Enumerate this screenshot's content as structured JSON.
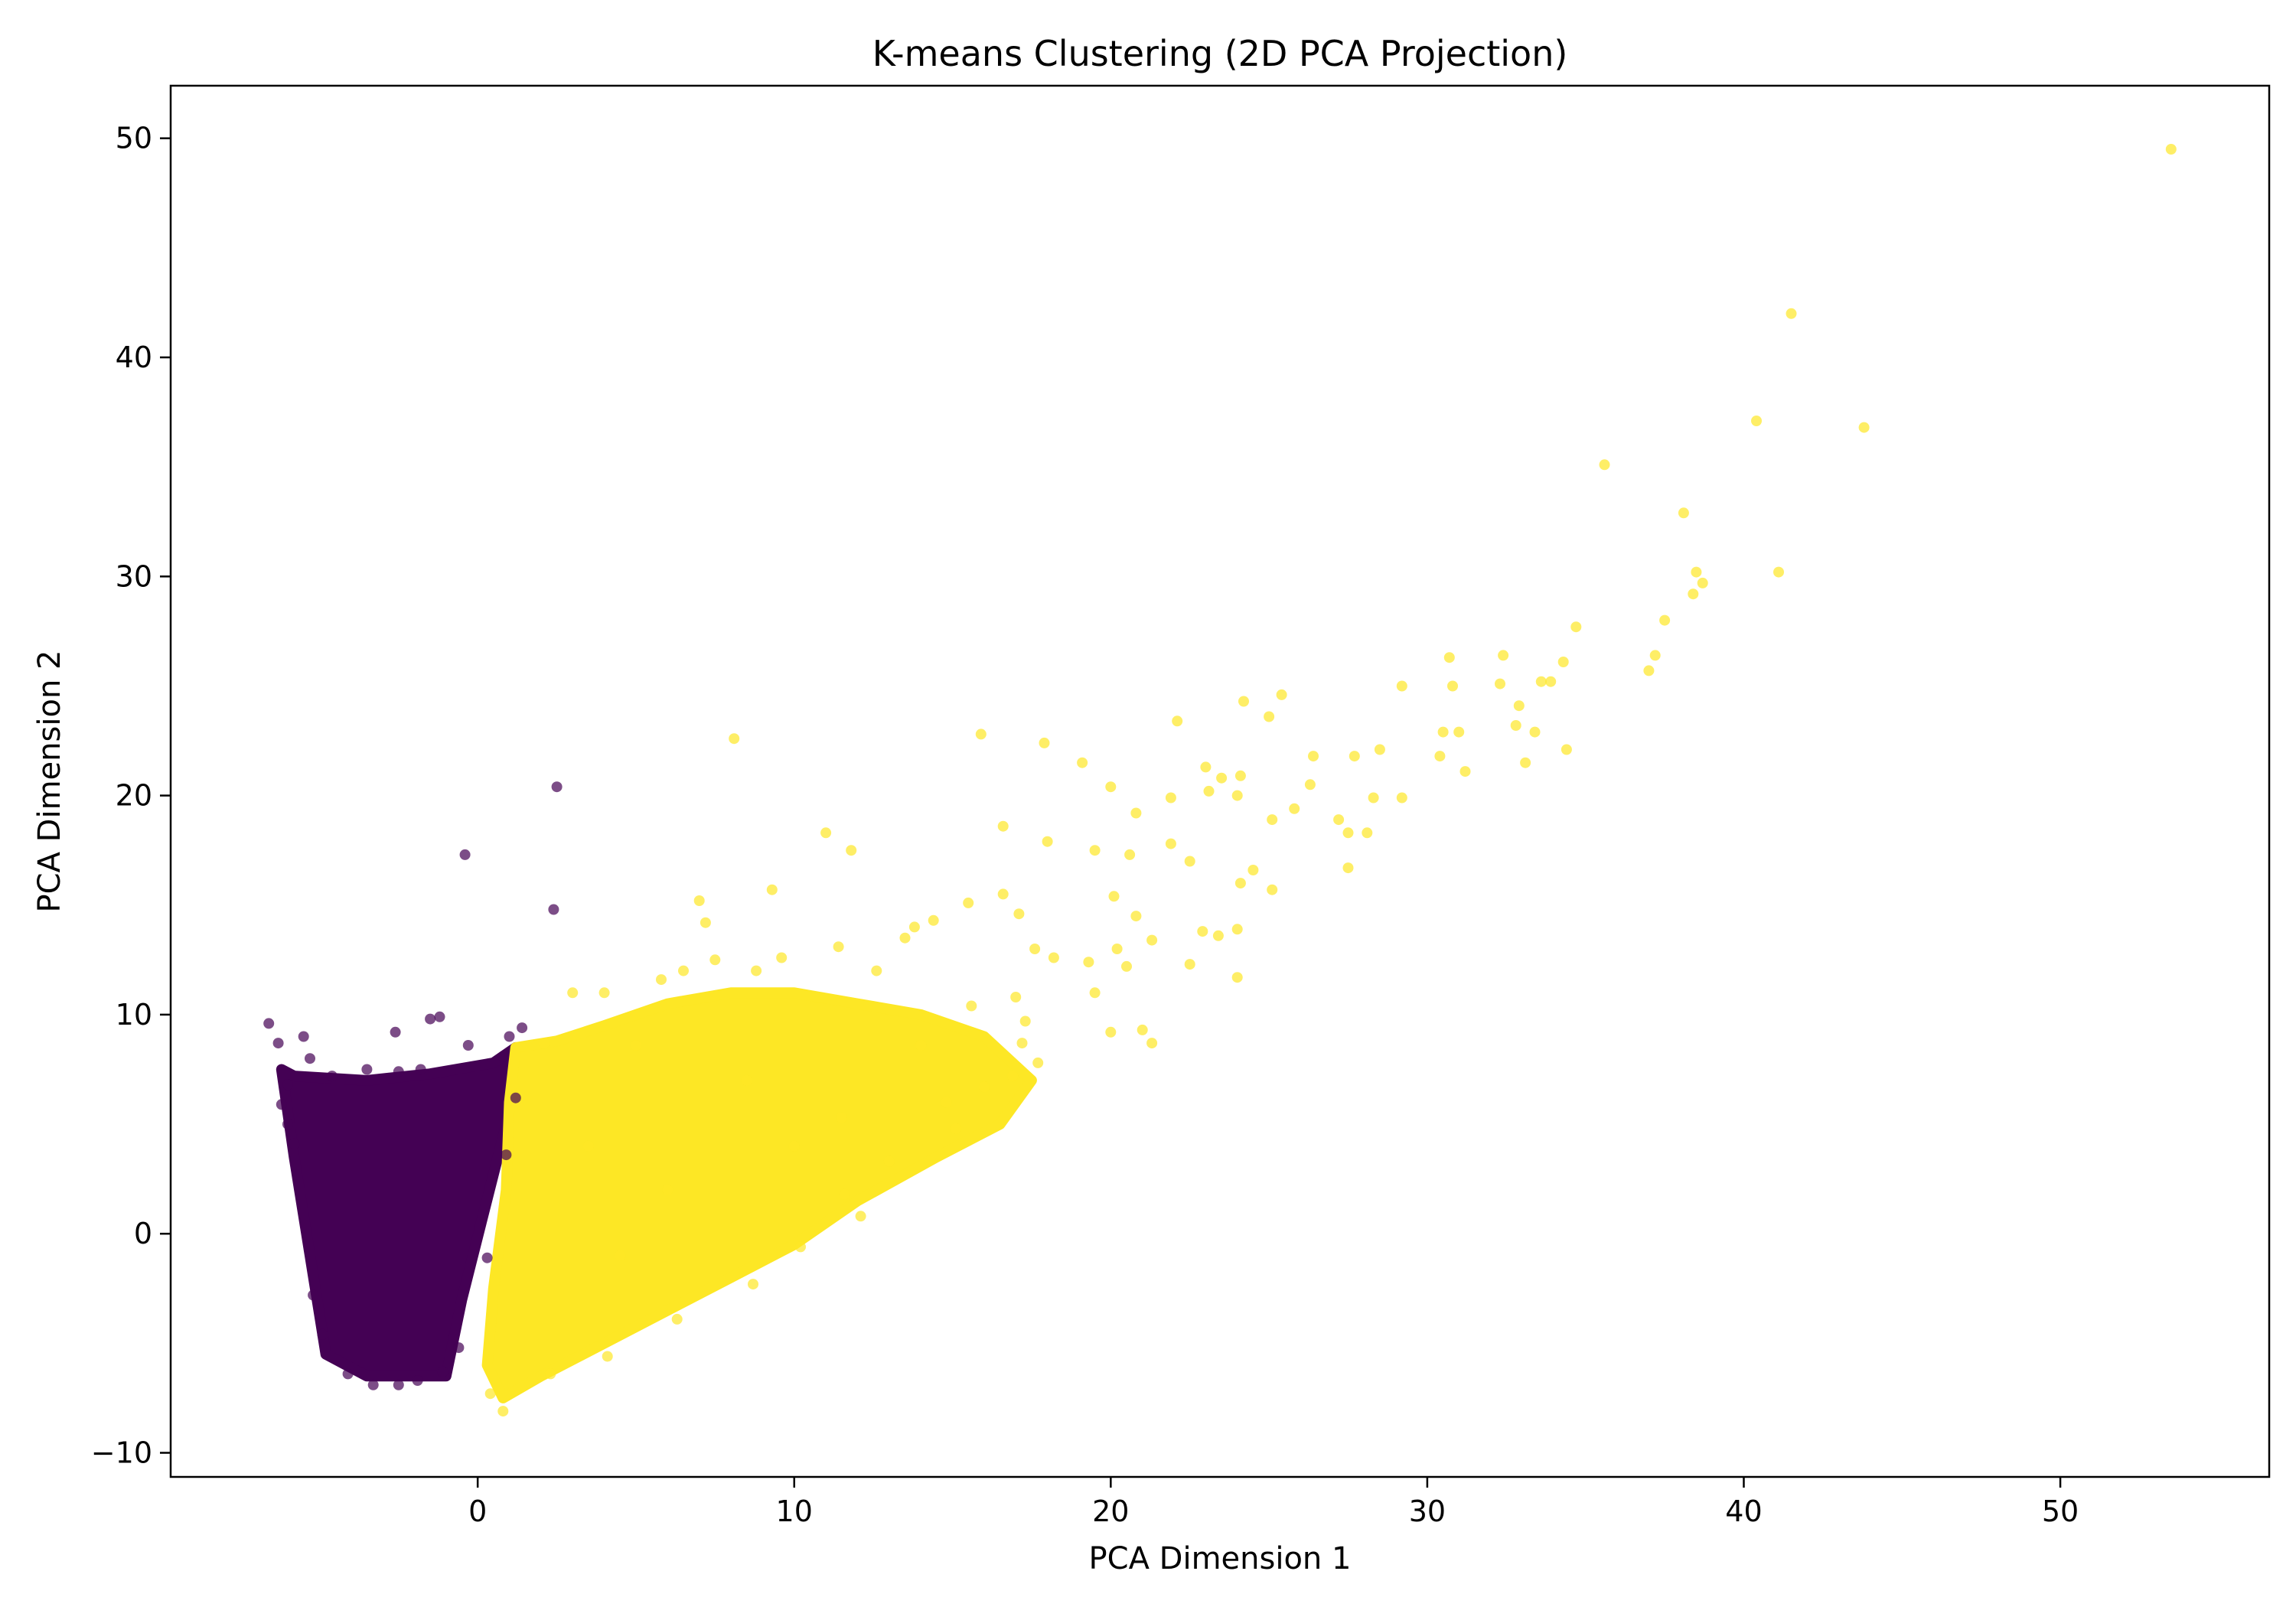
{
  "chart_data": {
    "type": "scatter",
    "title": "K-means Clustering (2D PCA Projection)",
    "xlabel": "PCA Dimension 1",
    "ylabel": "PCA Dimension 2",
    "xlim": [
      -9.7,
      56.6
    ],
    "ylim": [
      -11.1,
      52.4
    ],
    "xticks": [
      0,
      10,
      20,
      30,
      40,
      50
    ],
    "yticks": [
      -10,
      0,
      10,
      20,
      30,
      40,
      50
    ],
    "xtick_labels": [
      "0",
      "10",
      "20",
      "30",
      "40",
      "50"
    ],
    "ytick_labels": [
      "−10",
      "0",
      "10",
      "20",
      "30",
      "40",
      "50"
    ],
    "grid": false,
    "legend": "none",
    "marker_alpha": 0.7,
    "series": [
      {
        "color": "#440154",
        "dense_region": [
          [
            -6.2,
            7.5
          ],
          [
            -5.8,
            7.2
          ],
          [
            -3.5,
            7.0
          ],
          [
            -1.5,
            7.3
          ],
          [
            0.5,
            7.8
          ],
          [
            1.2,
            8.5
          ],
          [
            0.9,
            5.0
          ],
          [
            0.2,
            1.0
          ],
          [
            -0.5,
            -3.0
          ],
          [
            -1.0,
            -6.5
          ],
          [
            -3.5,
            -6.5
          ],
          [
            -4.8,
            -5.5
          ],
          [
            -5.3,
            -1.0
          ],
          [
            -5.8,
            3.5
          ]
        ],
        "points": [
          [
            -0.4,
            17.3
          ],
          [
            2.5,
            20.4
          ],
          [
            2.4,
            14.8
          ],
          [
            -1.5,
            9.8
          ],
          [
            -1.2,
            9.9
          ],
          [
            -6.6,
            9.6
          ],
          [
            -5.5,
            9.0
          ],
          [
            -6.3,
            8.7
          ],
          [
            -2.6,
            9.2
          ],
          [
            -0.3,
            8.6
          ],
          [
            1.0,
            9.0
          ],
          [
            1.4,
            9.4
          ],
          [
            0.8,
            8.1
          ],
          [
            -3.5,
            7.5
          ],
          [
            -2.5,
            7.4
          ],
          [
            -6.0,
            6.8
          ],
          [
            -6.2,
            5.9
          ],
          [
            -6.0,
            5.0
          ],
          [
            -5.8,
            4.1
          ],
          [
            -5.2,
            -2.8
          ],
          [
            -4.9,
            -4.6
          ],
          [
            -4.1,
            -6.4
          ],
          [
            -3.3,
            -6.9
          ],
          [
            -2.5,
            -6.9
          ],
          [
            -1.9,
            -6.7
          ],
          [
            -1.1,
            -6.3
          ],
          [
            -0.6,
            -5.2
          ],
          [
            0.3,
            -1.1
          ],
          [
            0.9,
            3.6
          ],
          [
            1.2,
            6.2
          ],
          [
            -1.8,
            7.5
          ],
          [
            -4.6,
            7.2
          ],
          [
            -5.3,
            8.0
          ]
        ]
      },
      {
        "color": "#fde725",
        "dense_region": [
          [
            1.2,
            8.5
          ],
          [
            2.5,
            8.8
          ],
          [
            4.0,
            9.5
          ],
          [
            6.0,
            10.5
          ],
          [
            8.0,
            11.0
          ],
          [
            10.0,
            11.0
          ],
          [
            12.0,
            10.5
          ],
          [
            14.0,
            10.0
          ],
          [
            16.0,
            9.0
          ],
          [
            17.5,
            7.0
          ],
          [
            16.5,
            5.0
          ],
          [
            14.5,
            3.5
          ],
          [
            12.0,
            1.5
          ],
          [
            10.0,
            -0.5
          ],
          [
            8.0,
            -2.0
          ],
          [
            6.0,
            -3.5
          ],
          [
            4.0,
            -5.0
          ],
          [
            2.0,
            -6.5
          ],
          [
            0.8,
            -7.5
          ],
          [
            0.3,
            -6.0
          ],
          [
            0.5,
            -2.5
          ],
          [
            0.9,
            2.0
          ],
          [
            1.0,
            6.0
          ]
        ],
        "points": [
          [
            53.5,
            49.5
          ],
          [
            41.5,
            42.0
          ],
          [
            40.4,
            37.1
          ],
          [
            43.8,
            36.8
          ],
          [
            35.6,
            35.1
          ],
          [
            38.1,
            32.9
          ],
          [
            38.5,
            30.2
          ],
          [
            41.1,
            30.2
          ],
          [
            38.7,
            29.7
          ],
          [
            38.4,
            29.2
          ],
          [
            37.5,
            28.0
          ],
          [
            34.7,
            27.7
          ],
          [
            37.2,
            26.4
          ],
          [
            32.4,
            26.4
          ],
          [
            30.7,
            26.3
          ],
          [
            34.3,
            26.1
          ],
          [
            37.0,
            25.7
          ],
          [
            33.9,
            25.2
          ],
          [
            33.6,
            25.2
          ],
          [
            30.8,
            25.0
          ],
          [
            29.2,
            25.0
          ],
          [
            25.4,
            24.6
          ],
          [
            32.3,
            25.1
          ],
          [
            32.9,
            24.1
          ],
          [
            24.2,
            24.3
          ],
          [
            25.0,
            23.6
          ],
          [
            22.1,
            23.4
          ],
          [
            33.4,
            22.9
          ],
          [
            32.8,
            23.2
          ],
          [
            30.5,
            22.9
          ],
          [
            31.0,
            22.9
          ],
          [
            8.1,
            22.6
          ],
          [
            15.9,
            22.8
          ],
          [
            17.9,
            22.4
          ],
          [
            34.4,
            22.1
          ],
          [
            28.5,
            22.1
          ],
          [
            27.7,
            21.8
          ],
          [
            30.4,
            21.8
          ],
          [
            31.2,
            21.1
          ],
          [
            33.1,
            21.5
          ],
          [
            26.4,
            21.8
          ],
          [
            19.1,
            21.5
          ],
          [
            23.0,
            21.3
          ],
          [
            23.5,
            20.8
          ],
          [
            26.3,
            20.5
          ],
          [
            24.1,
            20.9
          ],
          [
            28.3,
            19.9
          ],
          [
            29.2,
            19.9
          ],
          [
            20.0,
            20.4
          ],
          [
            21.9,
            19.9
          ],
          [
            23.1,
            20.2
          ],
          [
            24.0,
            20.0
          ],
          [
            25.8,
            19.4
          ],
          [
            27.2,
            18.9
          ],
          [
            28.1,
            18.3
          ],
          [
            27.5,
            18.3
          ],
          [
            25.1,
            18.9
          ],
          [
            20.8,
            19.2
          ],
          [
            20.6,
            17.3
          ],
          [
            21.9,
            17.8
          ],
          [
            11.0,
            18.3
          ],
          [
            16.6,
            18.6
          ],
          [
            18.0,
            17.9
          ],
          [
            11.8,
            17.5
          ],
          [
            19.5,
            17.5
          ],
          [
            22.5,
            17.0
          ],
          [
            24.5,
            16.6
          ],
          [
            24.1,
            16.0
          ],
          [
            25.1,
            15.7
          ],
          [
            27.5,
            16.7
          ],
          [
            20.1,
            15.4
          ],
          [
            9.3,
            15.7
          ],
          [
            15.5,
            15.1
          ],
          [
            16.6,
            15.5
          ],
          [
            17.1,
            14.6
          ],
          [
            20.8,
            14.5
          ],
          [
            22.9,
            13.8
          ],
          [
            23.4,
            13.6
          ],
          [
            24.0,
            13.9
          ],
          [
            21.3,
            13.4
          ],
          [
            20.2,
            13.0
          ],
          [
            17.6,
            13.0
          ],
          [
            18.2,
            12.6
          ],
          [
            19.3,
            12.4
          ],
          [
            20.5,
            12.2
          ],
          [
            22.5,
            12.3
          ],
          [
            24.0,
            11.7
          ],
          [
            19.5,
            11.0
          ],
          [
            21.0,
            9.3
          ],
          [
            21.3,
            8.7
          ],
          [
            20.0,
            9.2
          ],
          [
            17.2,
            8.7
          ],
          [
            17.7,
            7.8
          ],
          [
            16.9,
            7.2
          ],
          [
            16.0,
            6.7
          ],
          [
            14.8,
            6.0
          ],
          [
            15.1,
            4.8
          ],
          [
            13.0,
            3.3
          ],
          [
            11.6,
            1.8
          ],
          [
            12.1,
            0.8
          ],
          [
            10.2,
            -0.6
          ],
          [
            8.7,
            -2.3
          ],
          [
            6.3,
            -3.9
          ],
          [
            4.1,
            -5.6
          ],
          [
            2.3,
            -6.4
          ],
          [
            0.8,
            -8.1
          ],
          [
            0.4,
            -7.3
          ],
          [
            6.5,
            12.0
          ],
          [
            7.5,
            12.5
          ],
          [
            8.8,
            12.0
          ],
          [
            9.6,
            12.6
          ],
          [
            5.8,
            11.6
          ],
          [
            4.0,
            11.0
          ],
          [
            3.0,
            11.0
          ],
          [
            13.5,
            13.5
          ],
          [
            13.8,
            14.0
          ],
          [
            14.4,
            14.3
          ],
          [
            11.4,
            13.1
          ],
          [
            12.6,
            12.0
          ],
          [
            17.3,
            9.7
          ],
          [
            17.0,
            10.8
          ],
          [
            15.6,
            10.4
          ],
          [
            14.0,
            8.6
          ],
          [
            5.0,
            8.6
          ],
          [
            2.1,
            8.7
          ],
          [
            7.0,
            15.2
          ],
          [
            7.2,
            14.2
          ],
          [
            11.5,
            5.3
          ],
          [
            10.0,
            4.0
          ],
          [
            8.5,
            7.0
          ],
          [
            6.0,
            2.0
          ],
          [
            4.5,
            -1.0
          ],
          [
            3.5,
            4.0
          ]
        ]
      }
    ]
  }
}
